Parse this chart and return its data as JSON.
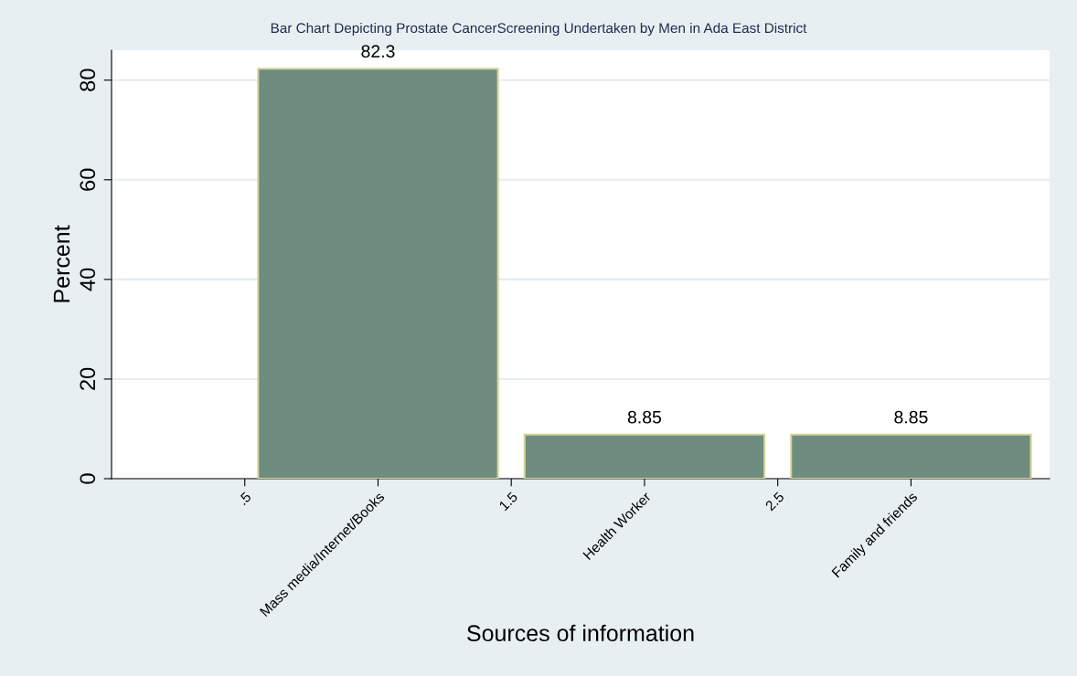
{
  "chart_data": {
    "type": "bar",
    "title": "Bar Chart Depicting Prostate CancerScreening Undertaken by Men in Ada East District",
    "xlabel": "Sources of information",
    "ylabel": "Percent",
    "x": [
      1,
      2,
      3
    ],
    "values": [
      82.3,
      8.85,
      8.85
    ],
    "color": "#6e8c80",
    "xlim": [
      0,
      3.52
    ],
    "xticks": [
      {
        "value": 0.5,
        "label": ".5"
      },
      {
        "value": 1,
        "label": "Mass media/Internet/Books"
      },
      {
        "value": 1.5,
        "label": "1.5"
      },
      {
        "value": 2,
        "label": "Health Worker"
      },
      {
        "value": 2.5,
        "label": "2.5"
      },
      {
        "value": 3,
        "label": "Family and friends"
      }
    ],
    "ylim": [
      0,
      86
    ],
    "yticks": [
      0,
      20,
      40,
      60,
      80
    ],
    "grid": "y",
    "data_labels": true
  }
}
